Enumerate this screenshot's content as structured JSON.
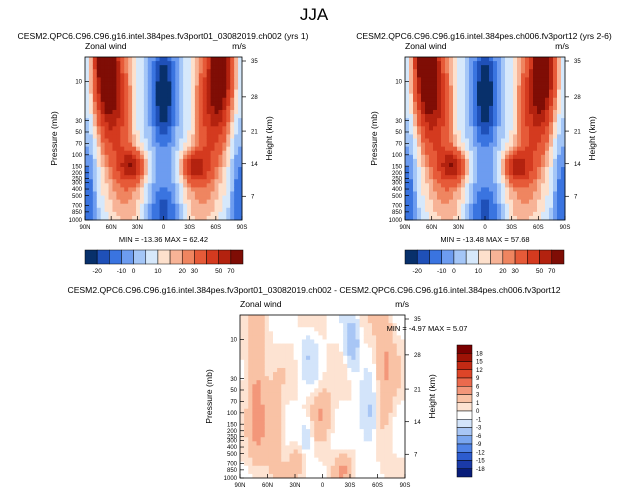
{
  "page": {
    "title": "JJA"
  },
  "colors": {
    "abs_scale": [
      "#08306b",
      "#1f50b8",
      "#3a74e0",
      "#6d9cf0",
      "#a4c6f7",
      "#d6e8fb",
      "#fde0cc",
      "#f7b396",
      "#ef8560",
      "#e65a38",
      "#d43a1f",
      "#b3220f",
      "#7f0d05"
    ],
    "diff_scale": [
      "#081d7a",
      "#1a3aa8",
      "#2d5ccf",
      "#4f82e6",
      "#7aa6ef",
      "#a8c6f5",
      "#d3e4fa",
      "#ffffff",
      "#fde3d2",
      "#f9c2a5",
      "#f3977a",
      "#eb6a4d",
      "#dd4528",
      "#c32a14",
      "#9e1306",
      "#7a0000"
    ]
  },
  "chart_data": [
    {
      "type": "heatmap",
      "title": "CESM2.QPC6.C96.C96.g16.intel.384pes.fv3port01_03082019.ch002 (yrs 1)",
      "left_label": "Zonal wind",
      "right_label": "m/s",
      "ylabel": "Pressure (mb)",
      "y2label": "Height (km)",
      "x_ticks": [
        "90N",
        "60N",
        "30N",
        "0",
        "30S",
        "60S",
        "90S"
      ],
      "y_ticks": [
        "10",
        "30",
        "50",
        "70",
        "100",
        "150",
        "200",
        "250",
        "300",
        "400",
        "500",
        "700",
        "850",
        "1000"
      ],
      "y2_ticks": [
        "35",
        "28",
        "21",
        "14",
        "7"
      ],
      "stats": "MIN = -13.36  MAX = 62.42",
      "colorbar_labels": [
        "-20",
        "-10",
        "0",
        "10",
        "20",
        "30",
        "50",
        "70"
      ]
    },
    {
      "type": "heatmap",
      "title": "CESM2.QPC6.C96.C96.g16.intel.384pes.ch006.fv3port12 (yrs 2-6)",
      "left_label": "Zonal wind",
      "right_label": "m/s",
      "ylabel": "Pressure (mb)",
      "y2label": "Height (km)",
      "x_ticks": [
        "90N",
        "60N",
        "30N",
        "0",
        "30S",
        "60S",
        "90S"
      ],
      "y_ticks": [
        "10",
        "30",
        "50",
        "70",
        "100",
        "150",
        "200",
        "250",
        "300",
        "400",
        "500",
        "700",
        "850",
        "1000"
      ],
      "y2_ticks": [
        "35",
        "28",
        "21",
        "14",
        "7"
      ],
      "stats": "MIN = -13.48  MAX = 57.68",
      "colorbar_labels": [
        "-20",
        "-10",
        "0",
        "10",
        "20",
        "30",
        "50",
        "70"
      ]
    },
    {
      "type": "heatmap",
      "title": "CESM2.QPC6.C96.C96.g16.intel.384pes.fv3port01_03082019.ch002 - CESM2.QPC6.C96.C96.g16.intel.384pes.ch006.fv3port12",
      "left_label": "Zonal wind",
      "right_label": "m/s",
      "ylabel": "Pressure (mb)",
      "y2label": "Height (km)",
      "x_ticks": [
        "90N",
        "60N",
        "30N",
        "0",
        "30S",
        "60S",
        "90S"
      ],
      "y_ticks": [
        "10",
        "30",
        "50",
        "70",
        "100",
        "150",
        "200",
        "250",
        "300",
        "400",
        "500",
        "700",
        "850",
        "1000"
      ],
      "y2_ticks": [
        "35",
        "28",
        "21",
        "14",
        "7"
      ],
      "stats": "MIN = -4.97  MAX =  5.07",
      "colorbar_labels": [
        "18",
        "15",
        "12",
        "9",
        "6",
        "3",
        "1",
        "0",
        "-1",
        "-3",
        "-6",
        "-9",
        "-12",
        "-15",
        "-18"
      ]
    }
  ]
}
